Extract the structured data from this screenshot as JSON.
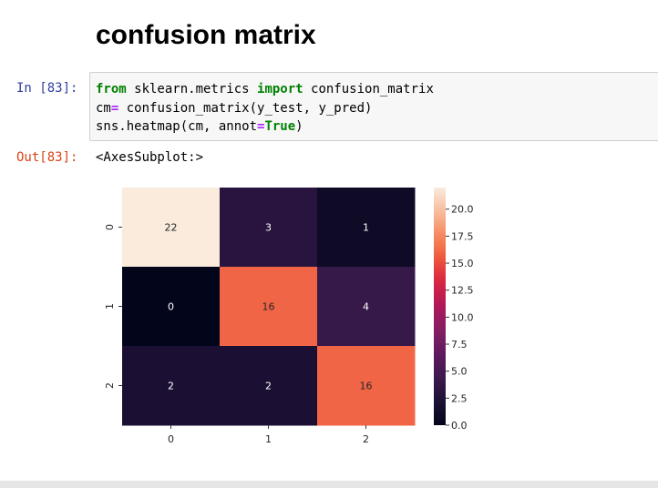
{
  "notebook": {
    "heading": "confusion matrix",
    "cell": {
      "in_prompt": "In [83]:",
      "out_prompt": "Out[83]:",
      "code_lines": [
        [
          {
            "t": "from",
            "c": "kw"
          },
          {
            "t": " sklearn.metrics "
          },
          {
            "t": "import",
            "c": "kw"
          },
          {
            "t": " confusion_matrix"
          }
        ],
        [
          {
            "t": "cm"
          },
          {
            "t": "=",
            "c": "op"
          },
          {
            "t": " confusion_matrix(y_test, y_pred)"
          }
        ],
        [
          {
            "t": "sns.heatmap(cm, annot"
          },
          {
            "t": "=",
            "c": "op"
          },
          {
            "t": "True",
            "c": "kw"
          },
          {
            "t": ")"
          }
        ]
      ],
      "output_text": "<AxesSubplot:>"
    }
  },
  "chart_data": {
    "type": "heatmap",
    "x_categories": [
      "0",
      "1",
      "2"
    ],
    "y_categories": [
      "0",
      "1",
      "2"
    ],
    "values": [
      [
        22,
        3,
        1
      ],
      [
        0,
        16,
        4
      ],
      [
        2,
        2,
        16
      ]
    ],
    "colorbar": {
      "min": 0,
      "max": 22,
      "ticks": [
        0.0,
        2.5,
        5.0,
        7.5,
        10.0,
        12.5,
        15.0,
        17.5,
        20.0
      ],
      "tick_labels": [
        "0.0",
        "2.5",
        "5.0",
        "7.5",
        "10.0",
        "12.5",
        "15.0",
        "17.5",
        "20.0"
      ],
      "colormap": "rocket"
    }
  }
}
